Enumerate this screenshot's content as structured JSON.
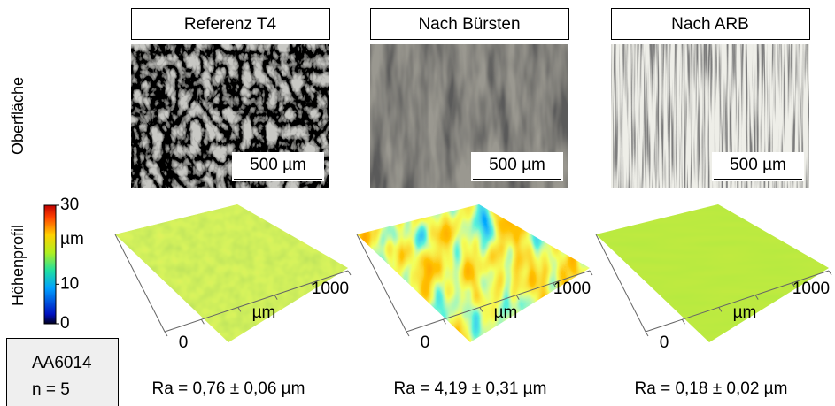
{
  "row_labels": [
    "Oberfläche",
    "Höhenprofil"
  ],
  "columns": [
    {
      "title": "Referenz T4",
      "scale_bar": "500 µm",
      "axis_ticks": [
        "0",
        "1000"
      ],
      "axis_unit": "µm",
      "roughness": "Ra = 0,76 ± 0,06 µm"
    },
    {
      "title": "Nach Bürsten",
      "scale_bar": "500 µm",
      "axis_ticks": [
        "0",
        "1000"
      ],
      "axis_unit": "µm",
      "roughness": "Ra = 4,19 ± 0,31 µm"
    },
    {
      "title": "Nach ARB",
      "scale_bar": "500 µm",
      "axis_ticks": [
        "0",
        "1000"
      ],
      "axis_unit": "µm",
      "roughness": "Ra = 0,18 ± 0,02 µm"
    }
  ],
  "colorbar": {
    "range": [
      0,
      30
    ],
    "ticks": [
      0,
      10,
      30
    ],
    "unit": "µm"
  },
  "sample": {
    "material": "AA6014",
    "count": "n = 5"
  }
}
